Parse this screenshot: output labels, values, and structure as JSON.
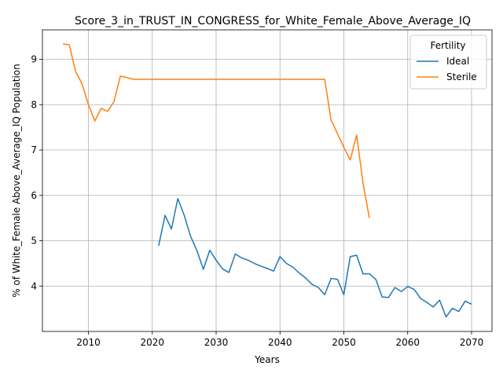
{
  "chart_data": {
    "type": "line",
    "title": "Score_3_in_TRUST_IN_CONGRESS_for_White_Female_Above_Average_IQ",
    "xlabel": "Years",
    "ylabel": "% of White_Female Above_Average_IQ Population",
    "xlim": [
      2002.8,
      2073.2
    ],
    "ylim": [
      3.0,
      9.65
    ],
    "xticks": [
      2010,
      2020,
      2030,
      2040,
      2050,
      2060,
      2070
    ],
    "yticks": [
      4,
      5,
      6,
      7,
      8,
      9
    ],
    "grid": true,
    "legend": {
      "title": "Fertility",
      "placement": "top-right"
    },
    "series": [
      {
        "name": "Ideal",
        "color": "#1f77b4",
        "x": [
          2021,
          2022,
          2023,
          2024,
          2025,
          2026,
          2027,
          2028,
          2029,
          2030,
          2031,
          2032,
          2033,
          2034,
          2035,
          2036,
          2037,
          2038,
          2039,
          2040,
          2041,
          2042,
          2043,
          2044,
          2045,
          2046,
          2047,
          2048,
          2049,
          2050,
          2051,
          2052,
          2053,
          2054,
          2055,
          2056,
          2057,
          2058,
          2059,
          2060,
          2061,
          2062,
          2063,
          2064,
          2065,
          2066,
          2067,
          2068,
          2069,
          2070
        ],
        "y": [
          4.89,
          5.56,
          5.26,
          5.93,
          5.56,
          5.1,
          4.78,
          4.37,
          4.79,
          4.57,
          4.38,
          4.3,
          4.71,
          4.62,
          4.57,
          4.5,
          4.44,
          4.39,
          4.33,
          4.65,
          4.5,
          4.42,
          4.29,
          4.18,
          4.04,
          3.97,
          3.81,
          4.17,
          4.15,
          3.81,
          4.65,
          4.68,
          4.27,
          4.27,
          4.15,
          3.76,
          3.75,
          3.97,
          3.88,
          3.99,
          3.93,
          3.73,
          3.64,
          3.54,
          3.69,
          3.32,
          3.51,
          3.44,
          3.67,
          3.6
        ]
      },
      {
        "name": "Sterile",
        "color": "#ff7f0e",
        "x": [
          2006,
          2007,
          2008,
          2009,
          2010,
          2011,
          2012,
          2013,
          2014,
          2015,
          2016,
          2017,
          2018,
          2019,
          2020,
          2021,
          2022,
          2023,
          2024,
          2025,
          2026,
          2027,
          2028,
          2029,
          2030,
          2031,
          2032,
          2033,
          2034,
          2035,
          2036,
          2037,
          2038,
          2039,
          2040,
          2041,
          2042,
          2043,
          2044,
          2045,
          2046,
          2047,
          2048,
          2049,
          2050,
          2051,
          2052,
          2053,
          2054
        ],
        "y": [
          9.34,
          9.32,
          8.73,
          8.46,
          8.0,
          7.64,
          7.92,
          7.85,
          8.07,
          8.63,
          8.6,
          8.56,
          8.56,
          8.56,
          8.56,
          8.56,
          8.56,
          8.56,
          8.56,
          8.56,
          8.56,
          8.56,
          8.56,
          8.56,
          8.56,
          8.56,
          8.56,
          8.56,
          8.56,
          8.56,
          8.56,
          8.56,
          8.56,
          8.56,
          8.56,
          8.56,
          8.56,
          8.56,
          8.56,
          8.56,
          8.56,
          8.56,
          7.66,
          7.36,
          7.06,
          6.78,
          7.33,
          6.27,
          5.5
        ]
      }
    ]
  }
}
